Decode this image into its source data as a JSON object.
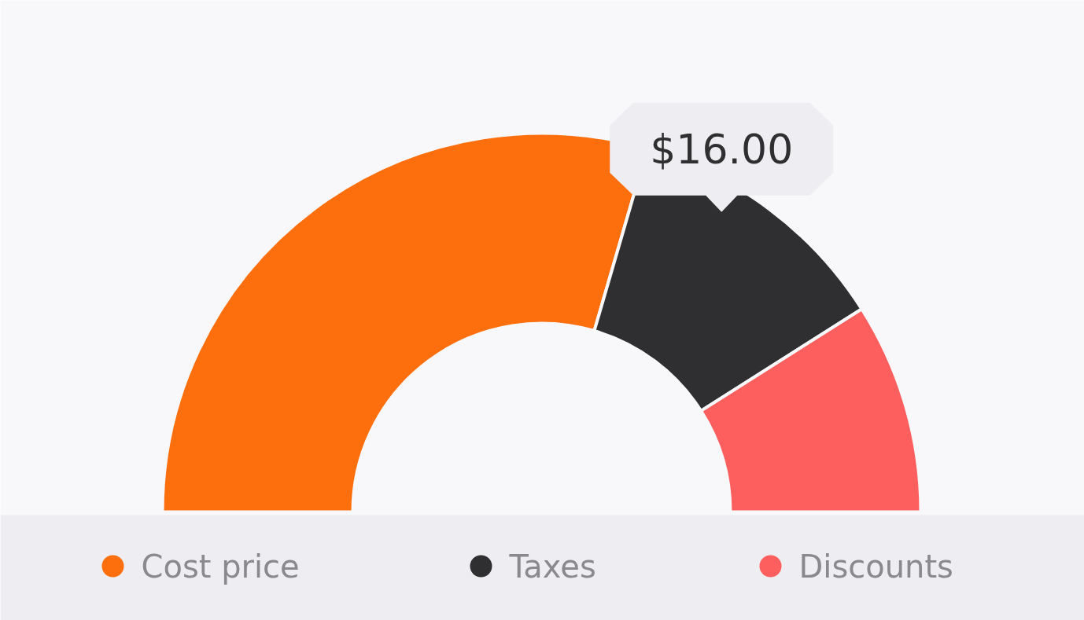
{
  "chart_data": {
    "type": "donut",
    "categories": [
      "Cost price",
      "Taxes",
      "Discounts"
    ],
    "values": [
      59,
      23,
      18
    ],
    "colors": [
      "#fd6f0c",
      "#2f2f31",
      "#fd5f5f"
    ],
    "annotations": [
      {
        "text": "$16.00",
        "x": "Taxes"
      }
    ],
    "legend": "bottom"
  }
}
